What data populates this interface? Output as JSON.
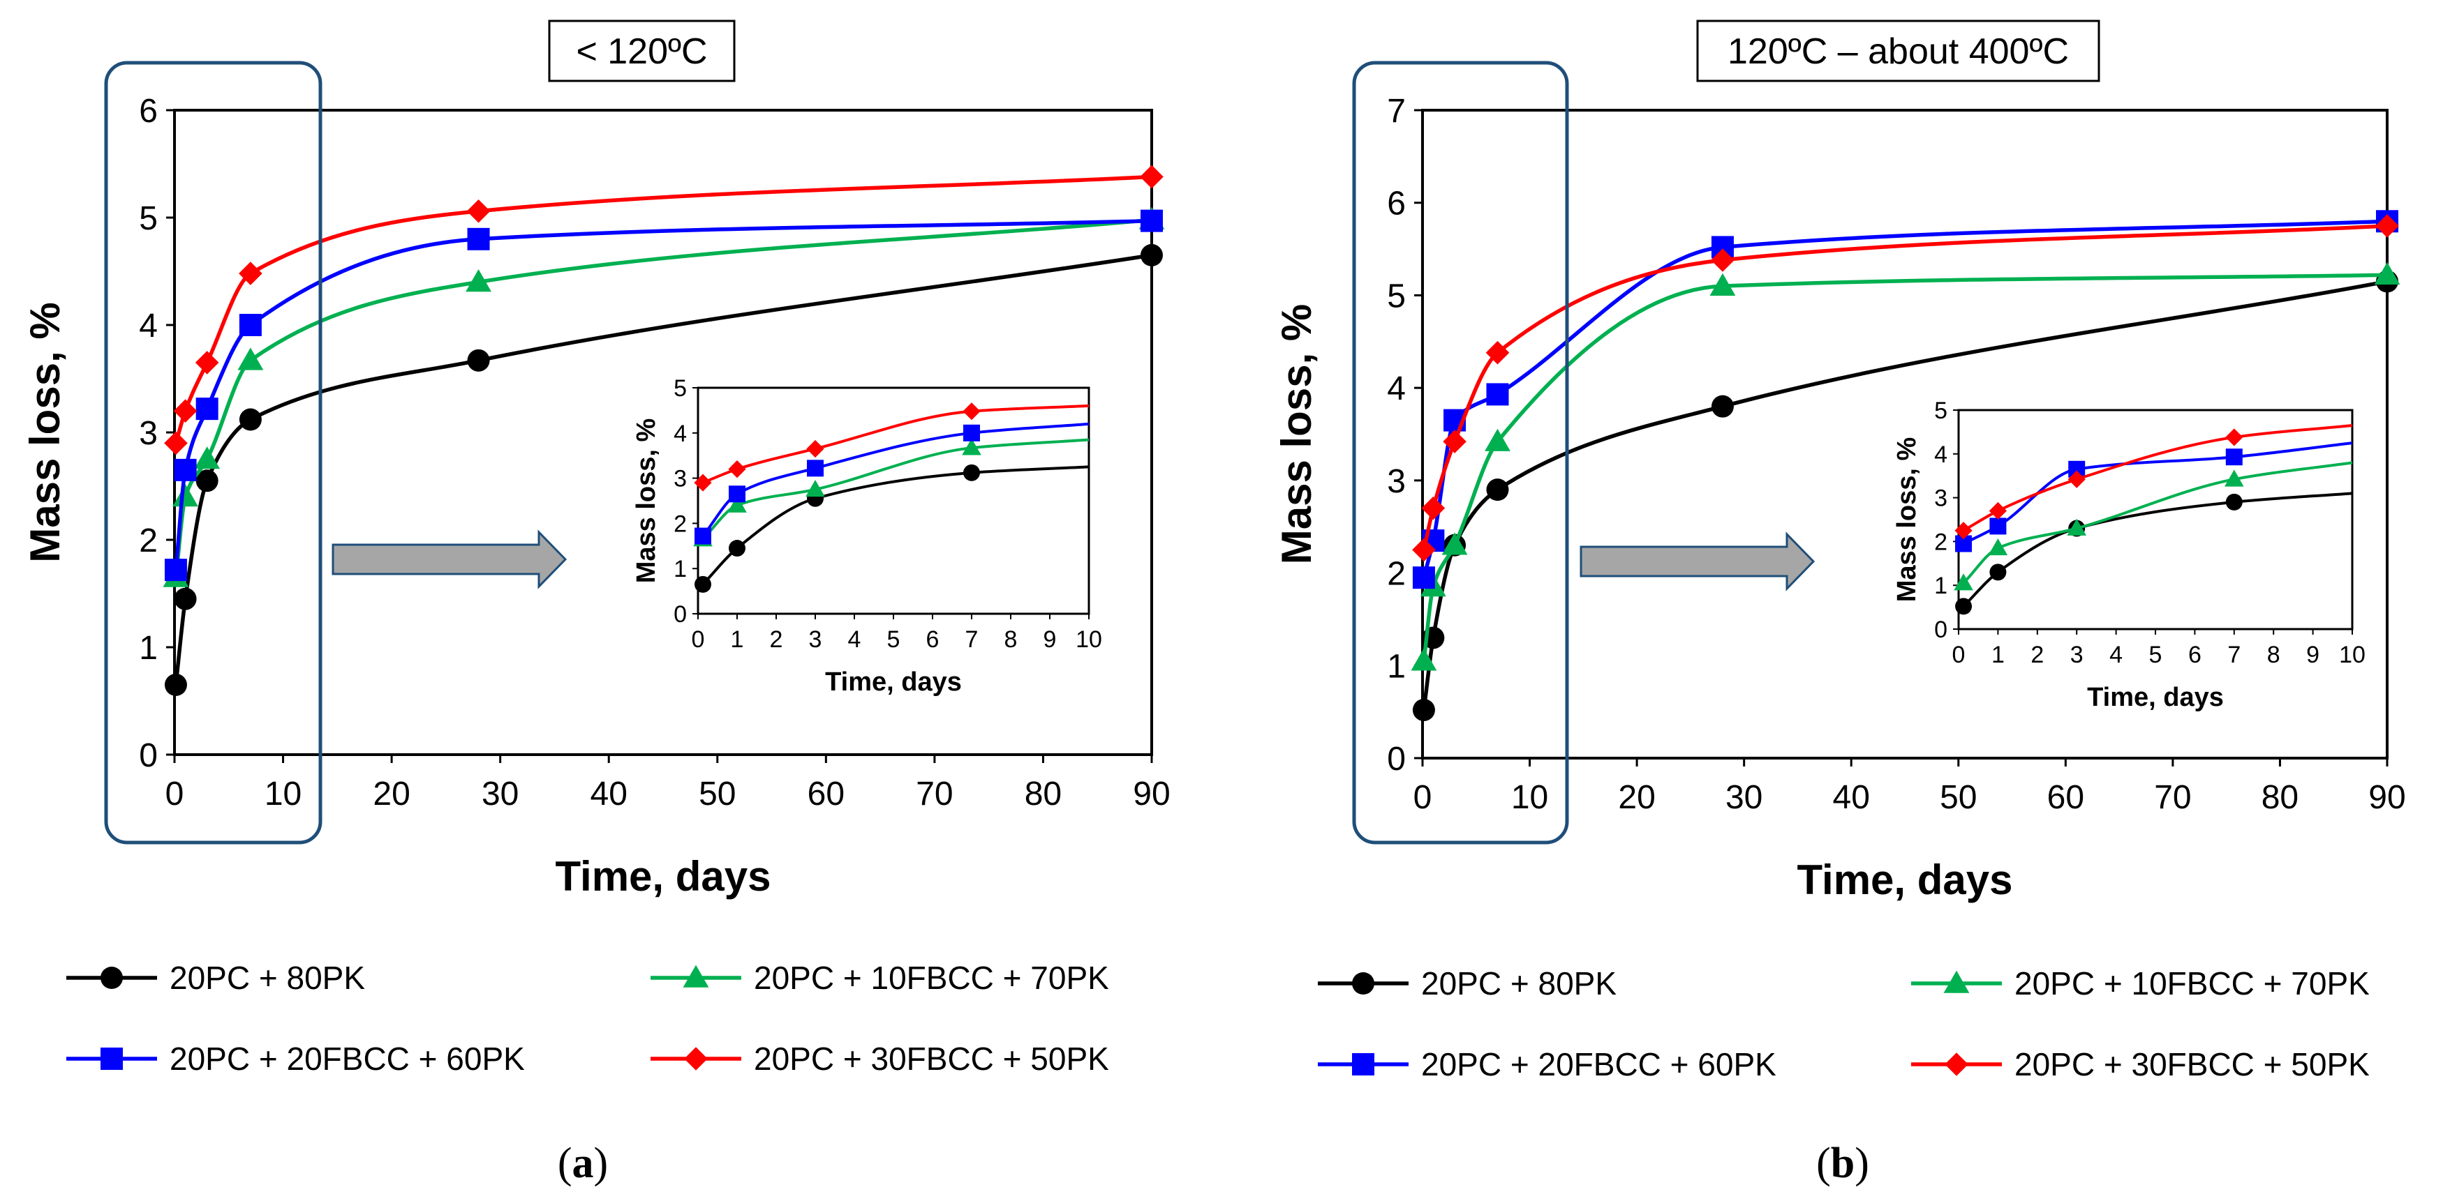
{
  "chart_data": [
    {
      "type": "line",
      "panel_label": "a",
      "title": "< 120ºC",
      "xlabel": "Time, days",
      "ylabel": "Mass loss, %",
      "xlim": [
        0,
        90
      ],
      "ylim": [
        0,
        6
      ],
      "xticks": [
        "0",
        "10",
        "20",
        "30",
        "40",
        "50",
        "60",
        "70",
        "80",
        "90"
      ],
      "yticks": [
        "0",
        "1",
        "2",
        "3",
        "4",
        "5",
        "6"
      ],
      "series": [
        {
          "name": "20PC + 80PK",
          "color": "#000000",
          "marker": "circle",
          "x": [
            0.125,
            1,
            3,
            7,
            28,
            90
          ],
          "values": [
            0.65,
            1.45,
            2.55,
            3.12,
            3.67,
            4.65
          ]
        },
        {
          "name": "20PC + 10FBCC + 70PK",
          "color": "#00b050",
          "marker": "triangle",
          "x": [
            0.125,
            1,
            3,
            7,
            28,
            90
          ],
          "values": [
            1.65,
            2.4,
            2.75,
            3.67,
            4.4,
            4.98
          ]
        },
        {
          "name": "20PC + 20FBCC + 60PK",
          "color": "#0000ff",
          "marker": "square",
          "x": [
            0.125,
            1,
            3,
            7,
            28,
            90
          ],
          "values": [
            1.72,
            2.65,
            3.22,
            4.0,
            4.8,
            4.97
          ]
        },
        {
          "name": "20PC + 30FBCC + 50PK",
          "color": "#ff0000",
          "marker": "diamond",
          "x": [
            0.125,
            1,
            3,
            7,
            28,
            90
          ],
          "values": [
            2.9,
            3.2,
            3.65,
            4.48,
            5.06,
            5.38
          ]
        }
      ],
      "inset": {
        "xlabel": "Time, days",
        "ylabel": "Mass loss, %",
        "xlim": [
          0,
          10
        ],
        "ylim": [
          0,
          5
        ],
        "xticks": [
          "0",
          "1",
          "2",
          "3",
          "4",
          "5",
          "6",
          "7",
          "8",
          "9",
          "10"
        ],
        "yticks": [
          "0",
          "1",
          "2",
          "3",
          "4",
          "5"
        ],
        "x_end": 10,
        "series_end_values": [
          3.25,
          3.85,
          4.2,
          4.6
        ]
      }
    },
    {
      "type": "line",
      "panel_label": "b",
      "title": "120ºC – about 400ºC",
      "xlabel": "Time, days",
      "ylabel": "Mass loss, %",
      "xlim": [
        0,
        90
      ],
      "ylim": [
        0,
        7
      ],
      "xticks": [
        "0",
        "10",
        "20",
        "30",
        "40",
        "50",
        "60",
        "70",
        "80",
        "90"
      ],
      "yticks": [
        "0",
        "1",
        "2",
        "3",
        "4",
        "5",
        "6",
        "7"
      ],
      "series": [
        {
          "name": "20PC + 80PK",
          "color": "#000000",
          "marker": "circle",
          "x": [
            0.125,
            1,
            3,
            7,
            28,
            90
          ],
          "values": [
            0.52,
            1.3,
            2.3,
            2.9,
            3.8,
            5.15
          ]
        },
        {
          "name": "20PC + 10FBCC + 70PK",
          "color": "#00b050",
          "marker": "triangle",
          "x": [
            0.125,
            1,
            3,
            7,
            28,
            90
          ],
          "values": [
            1.05,
            1.85,
            2.3,
            3.42,
            5.1,
            5.22
          ]
        },
        {
          "name": "20PC + 20FBCC + 60PK",
          "color": "#0000ff",
          "marker": "square",
          "x": [
            0.125,
            1,
            3,
            7,
            28,
            90
          ],
          "values": [
            1.95,
            2.35,
            3.65,
            3.93,
            5.52,
            5.8
          ]
        },
        {
          "name": "20PC + 30FBCC + 50PK",
          "color": "#ff0000",
          "marker": "diamond",
          "x": [
            0.125,
            1,
            3,
            7,
            28,
            90
          ],
          "values": [
            2.25,
            2.7,
            3.42,
            4.38,
            5.38,
            5.75
          ]
        }
      ],
      "inset": {
        "xlabel": "Time, days",
        "ylabel": "Mass loss, %",
        "xlim": [
          0,
          10
        ],
        "ylim": [
          0,
          5
        ],
        "xticks": [
          "0",
          "1",
          "2",
          "3",
          "4",
          "5",
          "6",
          "7",
          "8",
          "9",
          "10"
        ],
        "yticks": [
          "0",
          "1",
          "2",
          "3",
          "4",
          "5"
        ],
        "x_end": 10,
        "series_end_values": [
          3.1,
          3.8,
          4.25,
          4.65
        ]
      }
    }
  ],
  "colors": {
    "highlight_box": "#1f4e79",
    "arrow_fill": "#a6a6a6",
    "arrow_stroke": "#1f4e79"
  }
}
